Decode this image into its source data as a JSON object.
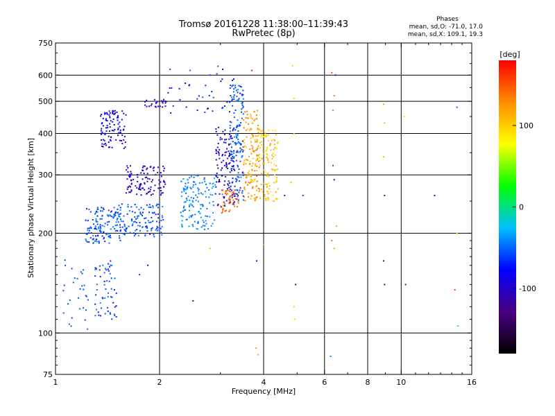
{
  "chart_data": {
    "type": "scatter",
    "title": "Tromsø 20161228 11:38:00–11:39:43",
    "subtitle": "RwPretec (8p)",
    "xlabel": "Frequency [MHz]",
    "ylabel": "Stationary phase Virtual Height [km]",
    "x_scale": "log",
    "y_scale": "log",
    "xlim": [
      1,
      16
    ],
    "ylim": [
      75,
      750
    ],
    "x_ticks": [
      1,
      2,
      4,
      6,
      8,
      10,
      16
    ],
    "x_tick_labels": [
      "1",
      "2",
      "4",
      "6",
      "8",
      "10",
      "16"
    ],
    "y_ticks": [
      75,
      100,
      200,
      300,
      400,
      500,
      600,
      750
    ],
    "y_tick_labels": [
      "75",
      "100",
      "200",
      "300",
      "400",
      "500",
      "600",
      "750"
    ],
    "x_gridlines": [
      2,
      4,
      6,
      8,
      10
    ],
    "y_gridlines": [
      100,
      200,
      300,
      400,
      500,
      600
    ],
    "grid": true,
    "legend_placement": "top-right",
    "phase_legend": {
      "header": "Phases",
      "line_o": "mean, sd,O: -71.0, 17.0",
      "line_x": "mean, sd,X: 109.1, 19.3"
    },
    "colorbar": {
      "label": "[deg]",
      "ticks": [
        100,
        0,
        -100
      ],
      "tick_labels": [
        "100",
        "0",
        "-100"
      ],
      "range": [
        -180,
        180
      ],
      "colors": [
        "#000000",
        "#4b0082",
        "#0000ff",
        "#00bfff",
        "#00ff00",
        "#ffff00",
        "#ff8c00",
        "#ff0000"
      ]
    },
    "clusters": [
      {
        "f": [
          1.05,
          1.25
        ],
        "h": [
          100,
          170
        ],
        "phase": [
          -60,
          -50
        ],
        "n": 30
      },
      {
        "f": [
          1.3,
          1.5
        ],
        "h": [
          110,
          165
        ],
        "phase": [
          -80,
          -40
        ],
        "n": 60
      },
      {
        "f": [
          1.22,
          1.55
        ],
        "h": [
          185,
          240
        ],
        "phase": [
          -75,
          -40
        ],
        "n": 140
      },
      {
        "f": [
          1.5,
          2.05
        ],
        "h": [
          195,
          245
        ],
        "phase": [
          -70,
          -35
        ],
        "n": 120
      },
      {
        "f": [
          1.35,
          1.6
        ],
        "h": [
          360,
          470
        ],
        "phase": [
          -100,
          -80
        ],
        "n": 100
      },
      {
        "f": [
          1.6,
          2.08
        ],
        "h": [
          260,
          320
        ],
        "phase": [
          -110,
          -85
        ],
        "n": 110
      },
      {
        "f": [
          2.3,
          2.9
        ],
        "h": [
          205,
          300
        ],
        "phase": [
          -55,
          -30
        ],
        "n": 140
      },
      {
        "f": [
          2.9,
          3.3
        ],
        "h": [
          240,
          420
        ],
        "phase": [
          -110,
          -85
        ],
        "n": 120
      },
      {
        "f": [
          3.2,
          3.5
        ],
        "h": [
          250,
          560
        ],
        "phase": [
          -70,
          -40
        ],
        "n": 160
      },
      {
        "f": [
          3.0,
          3.4
        ],
        "h": [
          230,
          270
        ],
        "phase": [
          130,
          160
        ],
        "n": 50
      },
      {
        "f": [
          3.5,
          3.9
        ],
        "h": [
          250,
          470
        ],
        "phase": [
          100,
          140
        ],
        "n": 150
      },
      {
        "f": [
          3.9,
          4.4
        ],
        "h": [
          250,
          410
        ],
        "phase": [
          80,
          120
        ],
        "n": 120
      },
      {
        "f": [
          2.1,
          3.3
        ],
        "h": [
          460,
          640
        ],
        "phase": [
          -100,
          -50
        ],
        "n": 40
      },
      {
        "f": [
          1.8,
          2.1
        ],
        "h": [
          480,
          510
        ],
        "phase": [
          -110,
          -90
        ],
        "n": 25
      }
    ],
    "scattered_points": [
      {
        "f": 4.85,
        "h": 640,
        "phase": 100
      },
      {
        "f": 4.9,
        "h": 510,
        "phase": 100
      },
      {
        "f": 4.9,
        "h": 400,
        "phase": 95
      },
      {
        "f": 4.95,
        "h": 140,
        "phase": -100
      },
      {
        "f": 4.9,
        "h": 120,
        "phase": 100
      },
      {
        "f": 4.92,
        "h": 110,
        "phase": 95
      },
      {
        "f": 3.8,
        "h": 90,
        "phase": 120
      },
      {
        "f": 3.85,
        "h": 86,
        "phase": 115
      },
      {
        "f": 3.82,
        "h": 165,
        "phase": -110
      },
      {
        "f": 4.0,
        "h": 185,
        "phase": 120
      },
      {
        "f": 3.7,
        "h": 620,
        "phase": 170
      },
      {
        "f": 2.8,
        "h": 600,
        "phase": -60
      },
      {
        "f": 6.3,
        "h": 610,
        "phase": 150
      },
      {
        "f": 6.45,
        "h": 600,
        "phase": -90
      },
      {
        "f": 6.4,
        "h": 520,
        "phase": 140
      },
      {
        "f": 6.35,
        "h": 470,
        "phase": 130
      },
      {
        "f": 6.35,
        "h": 320,
        "phase": -50
      },
      {
        "f": 6.4,
        "h": 290,
        "phase": -100
      },
      {
        "f": 6.3,
        "h": 190,
        "phase": 140
      },
      {
        "f": 6.4,
        "h": 180,
        "phase": 120
      },
      {
        "f": 6.5,
        "h": 210,
        "phase": 120
      },
      {
        "f": 6.25,
        "h": 85,
        "phase": -40
      },
      {
        "f": 8.9,
        "h": 490,
        "phase": 120
      },
      {
        "f": 8.95,
        "h": 430,
        "phase": 110
      },
      {
        "f": 8.9,
        "h": 340,
        "phase": 110
      },
      {
        "f": 8.95,
        "h": 260,
        "phase": -110
      },
      {
        "f": 8.9,
        "h": 165,
        "phase": -110
      },
      {
        "f": 8.95,
        "h": 140,
        "phase": -120
      },
      {
        "f": 10.3,
        "h": 140,
        "phase": -115
      },
      {
        "f": 10.2,
        "h": 450,
        "phase": 60
      },
      {
        "f": 12.5,
        "h": 260,
        "phase": -100
      },
      {
        "f": 14.5,
        "h": 480,
        "phase": -50
      },
      {
        "f": 14.5,
        "h": 200,
        "phase": 90
      },
      {
        "f": 14.3,
        "h": 135,
        "phase": 160
      },
      {
        "f": 14.6,
        "h": 105,
        "phase": 20
      },
      {
        "f": 2.5,
        "h": 125,
        "phase": -130
      },
      {
        "f": 2.8,
        "h": 180,
        "phase": 110
      },
      {
        "f": 1.75,
        "h": 150,
        "phase": -60
      },
      {
        "f": 1.85,
        "h": 160,
        "phase": -80
      },
      {
        "f": 5.2,
        "h": 260,
        "phase": -60
      },
      {
        "f": 4.6,
        "h": 260,
        "phase": -110
      },
      {
        "f": 4.8,
        "h": 285,
        "phase": 110
      }
    ]
  }
}
